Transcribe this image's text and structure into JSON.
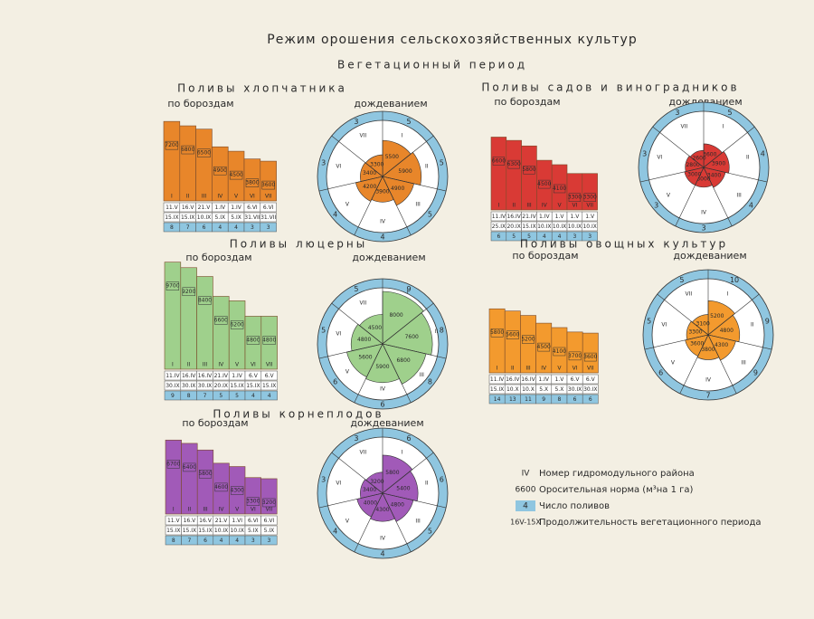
{
  "title": "Режим орошения сельскохозяйственных культур",
  "subtitle": "Вегетационный период",
  "sections": [
    {
      "title": "Поливы хлопчатника",
      "furrow": "по бороздам",
      "sprinkler": "дождеванием",
      "color": "#e8862a",
      "bars": {
        "districts": [
          "I",
          "II",
          "III",
          "IV",
          "V",
          "VI",
          "VII"
        ],
        "norms": [
          7200,
          6800,
          6500,
          4900,
          4500,
          3800,
          3600
        ],
        "starts": [
          "11.V",
          "16.V",
          "21.V",
          "1.IV",
          "1.IV",
          "6.VI",
          "6.VI"
        ],
        "ends": [
          "15.IX",
          "15.IX",
          "10.IX",
          "5.IX",
          "5.IX",
          "31.VII",
          "31.VII"
        ],
        "counts": [
          8,
          7,
          6,
          4,
          4,
          3,
          3
        ]
      },
      "circle": {
        "districts": [
          "I",
          "II",
          "III",
          "IV",
          "V",
          "VI",
          "VII"
        ],
        "norms": [
          5500,
          5900,
          4900,
          3900,
          4200,
          3400,
          3300
        ],
        "counts": [
          5,
          5,
          5,
          4,
          4,
          3,
          3
        ]
      }
    },
    {
      "title": "Поливы садов и виноградников",
      "furrow": "по бороздам",
      "sprinkler": "дождеванием",
      "color": "#d93a35",
      "bars": {
        "districts": [
          "I",
          "II",
          "III",
          "IV",
          "V",
          "VI",
          "VII"
        ],
        "norms": [
          6600,
          6300,
          5800,
          4500,
          4100,
          3300,
          3300
        ],
        "starts": [
          "11.IV",
          "16.IV",
          "21.IV",
          "1.IV",
          "1.V",
          "1.V",
          "1.V"
        ],
        "ends": [
          "25.IX",
          "20.IX",
          "15.IX",
          "10.IX",
          "10.IX",
          "10.IX",
          "10.IX"
        ],
        "counts": [
          6,
          5,
          5,
          4,
          4,
          3,
          3
        ]
      },
      "circle": {
        "districts": [
          "I",
          "II",
          "III",
          "IV",
          "V",
          "VI",
          "VII"
        ],
        "norms": [
          3600,
          3900,
          3400,
          3000,
          3000,
          2800,
          2600
        ],
        "counts": [
          5,
          4,
          4,
          3,
          3,
          3,
          3
        ]
      }
    },
    {
      "title": "Поливы люцерны",
      "furrow": "по бороздам",
      "sprinkler": "дождеванием",
      "color": "#9fd08c",
      "bars": {
        "districts": [
          "I",
          "II",
          "III",
          "IV",
          "V",
          "VI",
          "VII"
        ],
        "norms": [
          9700,
          9200,
          8400,
          6600,
          6200,
          4800,
          4800
        ],
        "starts": [
          "11.IV",
          "16.IV",
          "16.IV",
          "21.IV",
          "1.IV",
          "6.V",
          "6.V"
        ],
        "ends": [
          "30.IX",
          "30.IX",
          "30.IX",
          "20.IX",
          "15.IX",
          "15.IX",
          "15.IX"
        ],
        "counts": [
          9,
          8,
          7,
          5,
          5,
          4,
          4
        ]
      },
      "circle": {
        "districts": [
          "I",
          "II",
          "III",
          "IV",
          "V",
          "VI",
          "VII"
        ],
        "norms": [
          8000,
          7600,
          6800,
          5900,
          5600,
          4800,
          4500
        ],
        "counts": [
          9,
          8,
          8,
          6,
          6,
          5,
          5
        ]
      }
    },
    {
      "title": "Поливы овощных культур",
      "furrow": "по бороздам",
      "sprinkler": "дождеванием",
      "color": "#f39a2e",
      "bars": {
        "districts": [
          "I",
          "II",
          "III",
          "IV",
          "V",
          "VI",
          "VII"
        ],
        "norms": [
          5800,
          5600,
          5200,
          4500,
          4100,
          3700,
          3600
        ],
        "starts": [
          "11.IV",
          "16.IV",
          "16.IV",
          "1.IV",
          "1.V",
          "6.V",
          "6.V"
        ],
        "ends": [
          "15.IX",
          "10.X",
          "10.X",
          "5.X",
          "5.X",
          "30.IX",
          "30.IX"
        ],
        "counts": [
          14,
          13,
          11,
          9,
          8,
          6,
          6
        ]
      },
      "circle": {
        "districts": [
          "I",
          "II",
          "III",
          "IV",
          "V",
          "VI",
          "VII"
        ],
        "norms": [
          5200,
          4800,
          4300,
          3800,
          3600,
          3300,
          3100
        ],
        "counts": [
          10,
          9,
          9,
          7,
          6,
          5,
          5
        ]
      }
    },
    {
      "title": "Поливы корнеплодов",
      "furrow": "по бороздам",
      "sprinkler": "дождеванием",
      "color": "#a15ab8",
      "bars": {
        "districts": [
          "I",
          "II",
          "III",
          "IV",
          "V",
          "VI",
          "VII"
        ],
        "norms": [
          6700,
          6400,
          5800,
          4600,
          4300,
          3300,
          3200
        ],
        "starts": [
          "11.V",
          "16.V",
          "16.V",
          "21.V",
          "1.VI",
          "6.VI",
          "6.VI"
        ],
        "ends": [
          "15.IX",
          "15.IX",
          "15.IX",
          "10.IX",
          "10.IX",
          "5.IX",
          "5.IX"
        ],
        "counts": [
          8,
          7,
          6,
          4,
          4,
          3,
          3
        ]
      },
      "circle": {
        "districts": [
          "I",
          "II",
          "III",
          "IV",
          "V",
          "VI",
          "VII"
        ],
        "norms": [
          5800,
          5400,
          4800,
          4300,
          4000,
          3400,
          3200
        ],
        "counts": [
          6,
          6,
          5,
          4,
          4,
          3,
          3
        ]
      }
    }
  ],
  "legend": [
    {
      "symbol": "IV",
      "text": "Номер гидромодульного района"
    },
    {
      "symbol": "6600",
      "text": "Оросительная норма (м³на 1 га)"
    },
    {
      "symbol": "4",
      "text": "Число поливов"
    },
    {
      "symbol": "16V-15X",
      "text": "Продолжительность вегетационного периода"
    }
  ]
}
